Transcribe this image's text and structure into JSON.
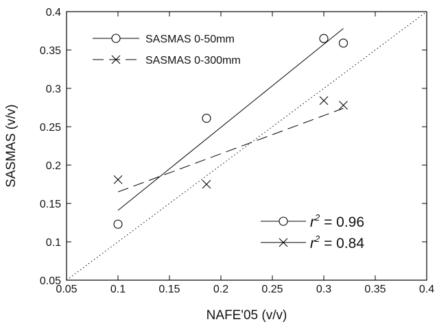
{
  "chart_data": {
    "type": "scatter",
    "xlabel": "NAFE'05 (v/v)",
    "ylabel": "SASMAS (v/v)",
    "xlim": [
      0.05,
      0.4
    ],
    "ylim": [
      0.05,
      0.4
    ],
    "xticks": [
      "0.05",
      "0.1",
      "0.15",
      "0.2",
      "0.25",
      "0.3",
      "0.35",
      "0.4"
    ],
    "yticks": [
      "0.05",
      "0.1",
      "0.15",
      "0.2",
      "0.25",
      "0.3",
      "0.35",
      "0.4"
    ],
    "grid": false,
    "legend_position": "top-left",
    "series": [
      {
        "name": "SASMAS 0-50mm",
        "marker": "circle",
        "line_style": "solid",
        "x": [
          0.1,
          0.186,
          0.3,
          0.319
        ],
        "y": [
          0.123,
          0.261,
          0.365,
          0.359
        ],
        "fit": {
          "x": [
            0.1,
            0.319
          ],
          "y": [
            0.141,
            0.378
          ]
        }
      },
      {
        "name": "SASMAS 0-300mm",
        "marker": "cross",
        "line_style": "dashed",
        "x": [
          0.1,
          0.186,
          0.3,
          0.319
        ],
        "y": [
          0.181,
          0.175,
          0.284,
          0.278
        ],
        "fit": {
          "x": [
            0.1,
            0.319
          ],
          "y": [
            0.165,
            0.274
          ]
        }
      }
    ],
    "reference_line": {
      "style": "dotted",
      "x": [
        0.05,
        0.4
      ],
      "y": [
        0.05,
        0.4
      ]
    },
    "stats": [
      {
        "marker": "circle",
        "label": "r",
        "sup": "2",
        "value": " = 0.96"
      },
      {
        "marker": "cross",
        "label": "r",
        "sup": "2",
        "value": " = 0.84"
      }
    ]
  }
}
